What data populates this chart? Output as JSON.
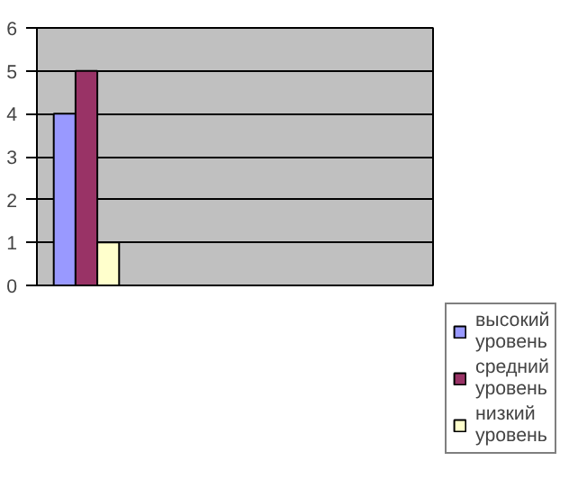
{
  "chart_data": {
    "type": "bar",
    "categories": [
      null,
      null,
      null,
      null
    ],
    "series": [
      {
        "name": "высокий уровень",
        "color": "#9999ff",
        "values": [
          4,
          null,
          null,
          null
        ]
      },
      {
        "name": "средний уровень",
        "color": "#993366",
        "values": [
          5,
          null,
          null,
          null
        ]
      },
      {
        "name": "низкий уровень",
        "color": "#ffffcc",
        "values": [
          1,
          null,
          null,
          null
        ]
      }
    ],
    "ylim": [
      0,
      6
    ],
    "yticks": [
      0,
      1,
      2,
      3,
      4,
      5,
      6
    ],
    "grid": "y",
    "legend": "bottom right"
  }
}
